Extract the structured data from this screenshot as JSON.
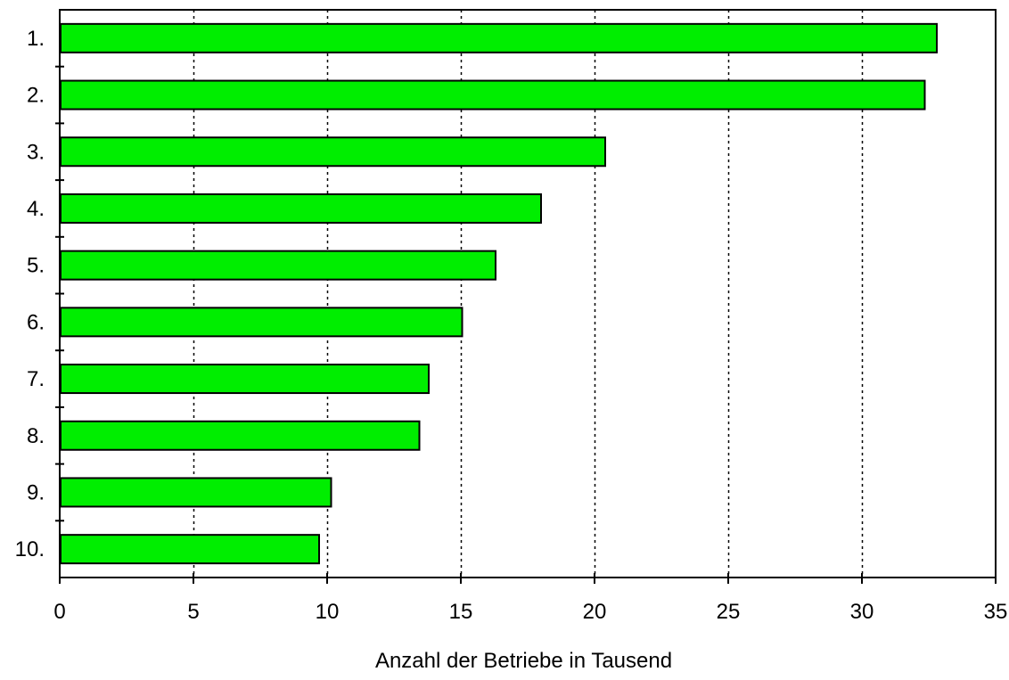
{
  "chart_data": {
    "type": "bar",
    "orientation": "horizontal",
    "categories": [
      "1.",
      "2.",
      "3.",
      "4.",
      "5.",
      "6.",
      "7.",
      "8.",
      "9.",
      "10."
    ],
    "values": [
      32.8,
      32.35,
      20.4,
      18.0,
      16.3,
      15.05,
      13.8,
      13.45,
      10.15,
      9.7
    ],
    "xlabel": "Anzahl der Betriebe in Tausend",
    "ylabel": "",
    "title": "",
    "xlim": [
      0,
      35
    ],
    "xticks": [
      "0",
      "5",
      "10",
      "15",
      "20",
      "25",
      "30",
      "35"
    ],
    "grid": "vertical-dotted",
    "colors": {
      "bar": "#00ee00",
      "bar_stroke": "#000000",
      "grid": "#000000",
      "axis": "#000000"
    }
  }
}
